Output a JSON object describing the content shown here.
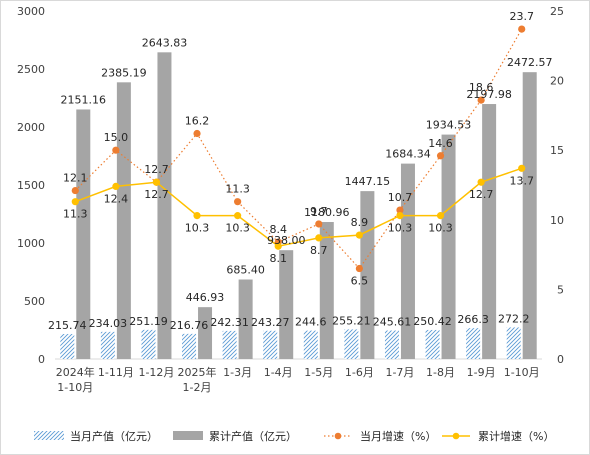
{
  "chart_data": {
    "type": "bar",
    "categories": [
      "2024年\n1-10月",
      "1-11月",
      "1-12月",
      "2025年\n1-2月",
      "1-3月",
      "1-4月",
      "1-5月",
      "1-6月",
      "1-7月",
      "1-8月",
      "1-9月",
      "1-10月"
    ],
    "series": [
      {
        "name": "当月产值（亿元）",
        "kind": "bar-hatched",
        "axis": "left",
        "values": [
          215.74,
          234.03,
          251.19,
          216.76,
          242.31,
          243.27,
          244.6,
          255.21,
          245.61,
          250.42,
          266.3,
          272.2
        ],
        "labels": [
          "215.74",
          "234.03",
          "251.19",
          "216.76",
          "242.31",
          "243.27",
          "244.6",
          "255.21",
          "245.61",
          "250.42",
          "266.3",
          "272.2"
        ],
        "color": "#5b9bd5"
      },
      {
        "name": "累计产值（亿元）",
        "kind": "bar",
        "axis": "left",
        "values": [
          2151.16,
          2385.19,
          2643.83,
          446.93,
          685.4,
          938.0,
          1180.96,
          1447.15,
          1684.34,
          1934.53,
          2197.98,
          2472.57
        ],
        "labels": [
          "2151.16",
          "2385.19",
          "2643.83",
          "446.93",
          "685.40",
          "938.00",
          "1180.96",
          "1447.15",
          "1684.34",
          "1934.53",
          "2197.98",
          "2472.57"
        ],
        "color": "#a5a5a5"
      },
      {
        "name": "当月增速（%）",
        "kind": "line-dotted",
        "axis": "right",
        "values": [
          12.1,
          15.0,
          12.7,
          16.2,
          11.3,
          8.4,
          9.7,
          6.5,
          10.7,
          14.6,
          18.6,
          23.7
        ],
        "labels": [
          "12.1",
          "15.0",
          "12.7",
          "16.2",
          "11.3",
          "8.4",
          "9.7",
          "6.5",
          "10.7",
          "14.6",
          "18.6",
          "23.7"
        ],
        "color": "#ed7d31"
      },
      {
        "name": "累计增速（%）",
        "kind": "line",
        "axis": "right",
        "values": [
          11.3,
          12.4,
          12.7,
          10.3,
          10.3,
          8.1,
          8.7,
          8.9,
          10.3,
          10.3,
          12.7,
          13.7
        ],
        "labels": [
          "11.3",
          "12.4",
          "12.7",
          "10.3",
          "10.3",
          "8.1",
          "8.7",
          "8.9",
          "10.3",
          "10.3",
          "12.7",
          "13.7"
        ],
        "color": "#ffc000"
      }
    ],
    "y_left": {
      "min": 0,
      "max": 3000,
      "ticks": [
        "0",
        "500",
        "1000",
        "1500",
        "2000",
        "2500",
        "3000"
      ]
    },
    "y_right": {
      "min": 0,
      "max": 25,
      "ticks": [
        "0",
        "5",
        "10",
        "15",
        "20",
        "25"
      ]
    },
    "grid": false,
    "legend_position": "bottom",
    "title": ""
  }
}
